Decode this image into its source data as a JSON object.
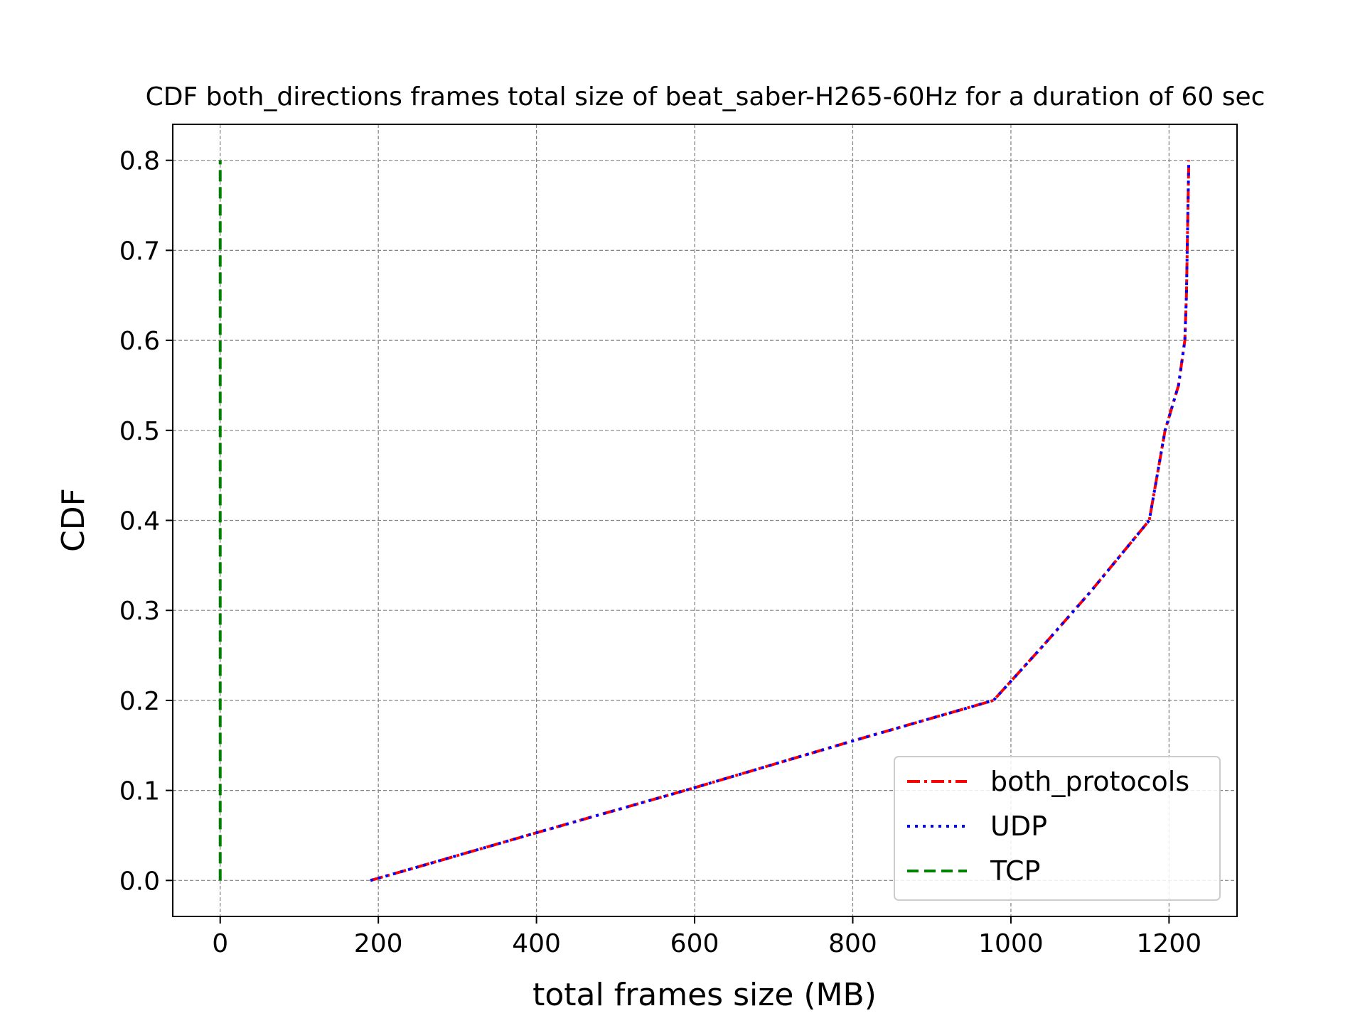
{
  "chart_data": {
    "type": "line",
    "title": "CDF both_directions frames total size of beat_saber-H265-60Hz for a duration of 60 sec",
    "xlabel": "total frames size (MB)",
    "ylabel": "CDF",
    "xlim": [
      -60,
      1286
    ],
    "ylim": [
      -0.04,
      0.84
    ],
    "x_ticks": [
      {
        "value": 0,
        "label": "0"
      },
      {
        "value": 200,
        "label": "200"
      },
      {
        "value": 400,
        "label": "400"
      },
      {
        "value": 600,
        "label": "600"
      },
      {
        "value": 800,
        "label": "800"
      },
      {
        "value": 1000,
        "label": "1000"
      },
      {
        "value": 1200,
        "label": "1200"
      }
    ],
    "y_ticks": [
      {
        "value": 0.0,
        "label": "0.0"
      },
      {
        "value": 0.1,
        "label": "0.1"
      },
      {
        "value": 0.2,
        "label": "0.2"
      },
      {
        "value": 0.3,
        "label": "0.3"
      },
      {
        "value": 0.4,
        "label": "0.4"
      },
      {
        "value": 0.5,
        "label": "0.5"
      },
      {
        "value": 0.6,
        "label": "0.6"
      },
      {
        "value": 0.7,
        "label": "0.7"
      },
      {
        "value": 0.8,
        "label": "0.8"
      }
    ],
    "grid": true,
    "legend_position": "lower-right",
    "series": [
      {
        "name": "both_protocols",
        "color": "#ff0000",
        "style": "dashdot",
        "x": [
          190,
          250,
          400,
          600,
          800,
          978,
          1040,
          1100,
          1175,
          1195,
          1212,
          1220,
          1222,
          1224,
          1225
        ],
        "y": [
          0.0,
          0.015,
          0.053,
          0.103,
          0.155,
          0.2,
          0.26,
          0.32,
          0.4,
          0.5,
          0.55,
          0.6,
          0.65,
          0.75,
          0.8
        ]
      },
      {
        "name": "UDP",
        "color": "#0000ff",
        "style": "dotted",
        "x": [
          190,
          250,
          400,
          600,
          800,
          978,
          1040,
          1100,
          1175,
          1195,
          1212,
          1220,
          1222,
          1224,
          1225
        ],
        "y": [
          0.0,
          0.015,
          0.053,
          0.103,
          0.155,
          0.2,
          0.26,
          0.32,
          0.4,
          0.5,
          0.55,
          0.6,
          0.65,
          0.75,
          0.8
        ]
      },
      {
        "name": "TCP",
        "color": "#008000",
        "style": "dashed",
        "x": [
          0,
          0
        ],
        "y": [
          0.0,
          0.8
        ]
      }
    ]
  }
}
